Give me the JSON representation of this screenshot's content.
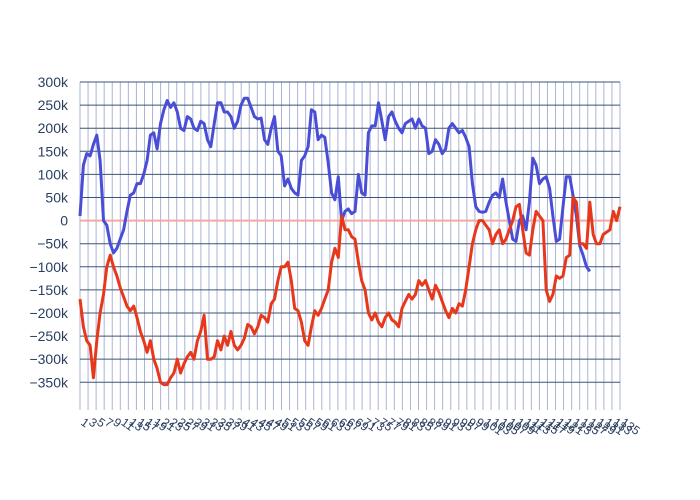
{
  "chart_data": {
    "type": "line",
    "ylim": [
      -410000,
      300000
    ],
    "y_ticks": [
      300000,
      250000,
      200000,
      150000,
      100000,
      50000,
      0,
      -50000,
      -100000,
      -150000,
      -200000,
      -250000,
      -300000,
      -350000
    ],
    "y_tick_labels": [
      "300k",
      "250k",
      "200k",
      "150k",
      "100k",
      "50k",
      "0",
      "−50k",
      "−100k",
      "−150k",
      "−200k",
      "−250k",
      "−300k",
      "−350k"
    ],
    "x_tick_labels": [
      "1",
      "3",
      "5",
      "7",
      "9",
      "11",
      "13",
      "15",
      "17",
      "19",
      "21",
      "23",
      "25",
      "27",
      "29",
      "31",
      "33",
      "35",
      "37",
      "39",
      "41",
      "43",
      "45",
      "47",
      "49",
      "51",
      "53",
      "55",
      "57",
      "59",
      "61",
      "63",
      "65",
      "67",
      "69",
      "71",
      "73",
      "75",
      "77",
      "79",
      "81",
      "83",
      "85",
      "87",
      "89",
      "91",
      "93",
      "95",
      "97",
      "99",
      "101",
      "103",
      "105",
      "107",
      "109",
      "111",
      "113",
      "115",
      "117",
      "119",
      "121",
      "123",
      "125",
      "127",
      "129",
      "131",
      "133",
      "135"
    ],
    "grid": true,
    "zero_line": true,
    "colors": {
      "series_blue": "#4a4ed6",
      "series_red": "#e8381c",
      "grid": "#3d5373",
      "zero_line": "#f4a89e",
      "axis_text": "#2a3f5f"
    },
    "series": [
      {
        "color": "#4a4ed6",
        "values": [
          10000,
          120000,
          145000,
          140000,
          165000,
          185000,
          130000,
          0,
          -10000,
          -50000,
          -70000,
          -60000,
          -40000,
          -20000,
          20000,
          55000,
          60000,
          80000,
          80000,
          100000,
          130000,
          185000,
          190000,
          155000,
          210000,
          240000,
          260000,
          245000,
          255000,
          235000,
          200000,
          195000,
          225000,
          220000,
          200000,
          195000,
          215000,
          210000,
          175000,
          160000,
          210000,
          255000,
          255000,
          235000,
          235000,
          225000,
          200000,
          215000,
          250000,
          265000,
          265000,
          245000,
          225000,
          220000,
          222000,
          175000,
          165000,
          200000,
          225000,
          150000,
          140000,
          75000,
          90000,
          70000,
          60000,
          55000,
          130000,
          140000,
          160000,
          240000,
          235000,
          175000,
          185000,
          180000,
          125000,
          60000,
          45000,
          95000,
          0,
          20000,
          25000,
          15000,
          20000,
          100000,
          60000,
          55000,
          190000,
          205000,
          205000,
          255000,
          215000,
          175000,
          225000,
          235000,
          215000,
          200000,
          190000,
          210000,
          215000,
          220000,
          200000,
          220000,
          205000,
          200000,
          145000,
          150000,
          175000,
          165000,
          145000,
          155000,
          200000,
          210000,
          200000,
          190000,
          195000,
          180000,
          160000,
          80000,
          30000,
          20000,
          18000,
          20000,
          40000,
          55000,
          60000,
          50000,
          90000,
          40000,
          0,
          -40000,
          -45000,
          0,
          10000,
          -20000,
          40000,
          135000,
          120000,
          80000,
          90000,
          95000,
          70000,
          10000,
          -45000,
          -40000,
          30000,
          95000,
          95000,
          55000,
          10000,
          -55000,
          -75000,
          -100000,
          -110000
        ]
      },
      {
        "color": "#e8381c",
        "values": [
          -170000,
          -230000,
          -260000,
          -270000,
          -340000,
          -260000,
          -200000,
          -160000,
          -100000,
          -75000,
          -100000,
          -120000,
          -145000,
          -165000,
          -185000,
          -195000,
          -185000,
          -210000,
          -240000,
          -260000,
          -285000,
          -260000,
          -300000,
          -320000,
          -350000,
          -355000,
          -355000,
          -340000,
          -330000,
          -300000,
          -330000,
          -310000,
          -295000,
          -285000,
          -300000,
          -260000,
          -240000,
          -205000,
          -300000,
          -300000,
          -295000,
          -260000,
          -280000,
          -250000,
          -270000,
          -240000,
          -270000,
          -280000,
          -270000,
          -255000,
          -225000,
          -230000,
          -245000,
          -230000,
          -205000,
          -210000,
          -220000,
          -180000,
          -170000,
          -130000,
          -100000,
          -100000,
          -90000,
          -130000,
          -190000,
          -195000,
          -220000,
          -260000,
          -270000,
          -230000,
          -195000,
          -205000,
          -190000,
          -170000,
          -150000,
          -90000,
          -60000,
          -80000,
          10000,
          -20000,
          -20000,
          -35000,
          -40000,
          -90000,
          -130000,
          -150000,
          -200000,
          -215000,
          -200000,
          -220000,
          -230000,
          -210000,
          -200000,
          -215000,
          -220000,
          -230000,
          -190000,
          -175000,
          -160000,
          -170000,
          -160000,
          -130000,
          -140000,
          -130000,
          -150000,
          -170000,
          -140000,
          -155000,
          -175000,
          -195000,
          -210000,
          -190000,
          -200000,
          -180000,
          -185000,
          -150000,
          -100000,
          -50000,
          -20000,
          0,
          0,
          -10000,
          -20000,
          -50000,
          -30000,
          -20000,
          -50000,
          -40000,
          -20000,
          0,
          30000,
          35000,
          -20000,
          -70000,
          -75000,
          -20000,
          20000,
          10000,
          0,
          -150000,
          -175000,
          -160000,
          -120000,
          -125000,
          -120000,
          -80000,
          -75000,
          50000,
          40000,
          -50000,
          -50000,
          -60000,
          40000,
          -30000,
          -50000,
          -50000,
          -30000,
          -25000,
          -20000,
          20000,
          0,
          30000
        ]
      }
    ]
  }
}
